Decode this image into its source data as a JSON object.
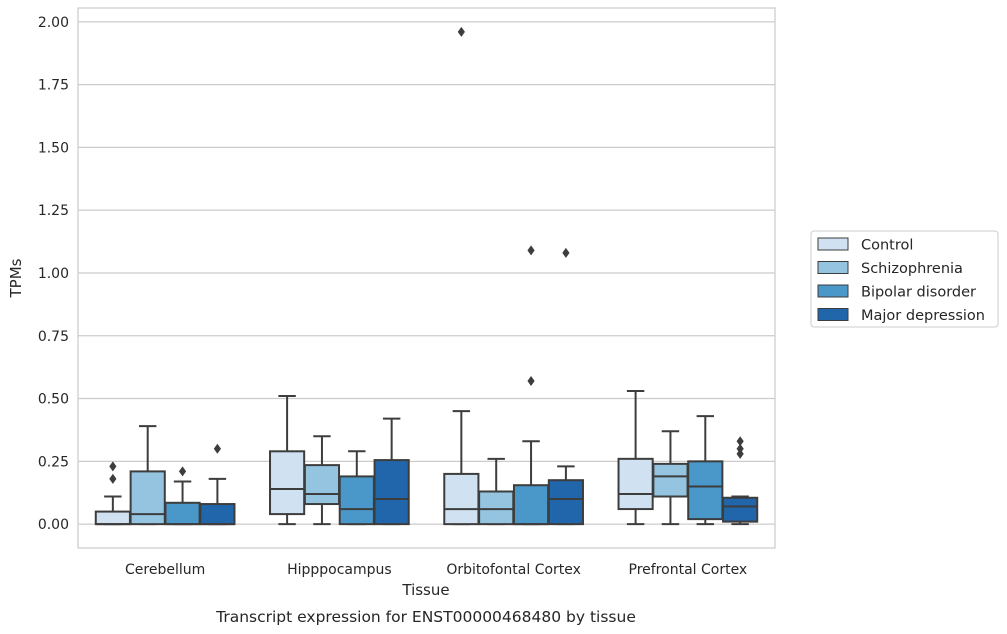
{
  "chart_data": {
    "type": "box",
    "caption": "Transcript expression for ENST00000468480 by tissue",
    "xlabel": "Tissue",
    "ylabel": "TPMs",
    "ylim": [
      -0.095,
      2.055
    ],
    "yticks": [
      0.0,
      0.25,
      0.5,
      0.75,
      1.0,
      1.25,
      1.5,
      1.75,
      2.0
    ],
    "ytick_labels": [
      "0.00",
      "0.25",
      "0.50",
      "0.75",
      "1.00",
      "1.25",
      "1.50",
      "1.75",
      "2.00"
    ],
    "grid": "horizontal",
    "legend_position": "right",
    "categories": [
      "Cerebellum",
      "Hipppocampus",
      "Orbitofontal Cortex",
      "Prefrontal Cortex"
    ],
    "series": [
      {
        "name": "Control",
        "color": "#d0e1f2",
        "boxes": [
          {
            "whislo": 0.0,
            "q1": 0.0,
            "med": 0.0,
            "q3": 0.05,
            "whishi": 0.11,
            "fliers": [
              0.18,
              0.23
            ]
          },
          {
            "whislo": 0.0,
            "q1": 0.04,
            "med": 0.14,
            "q3": 0.29,
            "whishi": 0.51,
            "fliers": []
          },
          {
            "whislo": 0.0,
            "q1": 0.0,
            "med": 0.06,
            "q3": 0.2,
            "whishi": 0.45,
            "fliers": [
              1.96
            ]
          },
          {
            "whislo": 0.0,
            "q1": 0.06,
            "med": 0.12,
            "q3": 0.26,
            "whishi": 0.53,
            "fliers": []
          }
        ]
      },
      {
        "name": "Schizophrenia",
        "color": "#94c4df",
        "boxes": [
          {
            "whislo": 0.0,
            "q1": 0.0,
            "med": 0.04,
            "q3": 0.21,
            "whishi": 0.39,
            "fliers": []
          },
          {
            "whislo": 0.0,
            "q1": 0.08,
            "med": 0.12,
            "q3": 0.235,
            "whishi": 0.35,
            "fliers": []
          },
          {
            "whislo": 0.0,
            "q1": 0.0,
            "med": 0.06,
            "q3": 0.13,
            "whishi": 0.26,
            "fliers": []
          },
          {
            "whislo": 0.0,
            "q1": 0.11,
            "med": 0.19,
            "q3": 0.24,
            "whishi": 0.37,
            "fliers": []
          }
        ]
      },
      {
        "name": "Bipolar disorder",
        "color": "#4a98c9",
        "boxes": [
          {
            "whislo": 0.0,
            "q1": 0.0,
            "med": 0.0,
            "q3": 0.085,
            "whishi": 0.17,
            "fliers": [
              0.21
            ]
          },
          {
            "whislo": 0.0,
            "q1": 0.0,
            "med": 0.06,
            "q3": 0.19,
            "whishi": 0.29,
            "fliers": []
          },
          {
            "whislo": 0.0,
            "q1": 0.0,
            "med": 0.0,
            "q3": 0.155,
            "whishi": 0.33,
            "fliers": [
              0.57,
              1.09
            ]
          },
          {
            "whislo": 0.0,
            "q1": 0.02,
            "med": 0.15,
            "q3": 0.25,
            "whishi": 0.43,
            "fliers": []
          }
        ]
      },
      {
        "name": "Major depression",
        "color": "#2165ab",
        "boxes": [
          {
            "whislo": 0.0,
            "q1": 0.0,
            "med": 0.0,
            "q3": 0.08,
            "whishi": 0.18,
            "fliers": [
              0.3
            ]
          },
          {
            "whislo": 0.0,
            "q1": 0.0,
            "med": 0.1,
            "q3": 0.255,
            "whishi": 0.42,
            "fliers": []
          },
          {
            "whislo": 0.0,
            "q1": 0.0,
            "med": 0.1,
            "q3": 0.175,
            "whishi": 0.23,
            "fliers": [
              1.08
            ]
          },
          {
            "whislo": 0.0,
            "q1": 0.01,
            "med": 0.07,
            "q3": 0.105,
            "whishi": 0.11,
            "fliers": [
              0.28,
              0.3,
              0.33
            ]
          }
        ]
      }
    ]
  }
}
